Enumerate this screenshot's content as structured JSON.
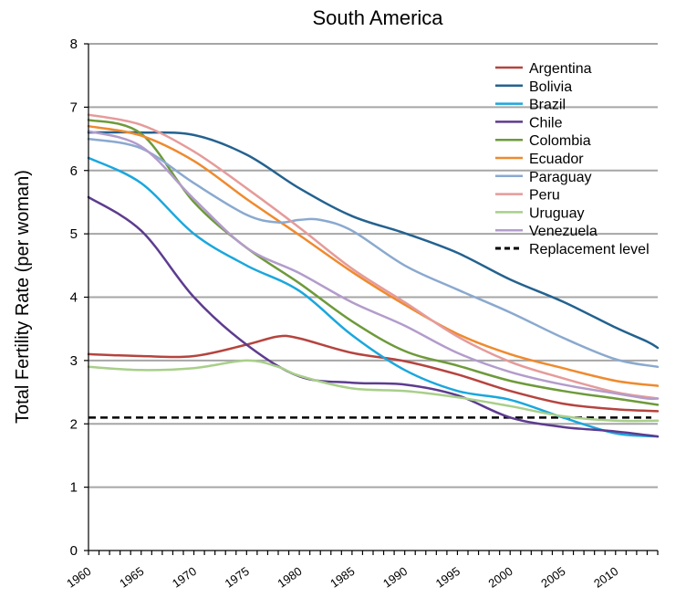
{
  "chart_data": {
    "type": "line",
    "title": "South America",
    "xlabel": "",
    "ylabel": "Total Fertility Rate (per woman)",
    "xlim": [
      1960,
      2014
    ],
    "ylim": [
      0,
      8
    ],
    "x_ticks": [
      1960,
      1965,
      1970,
      1975,
      1980,
      1985,
      1990,
      1995,
      2000,
      2005,
      2010
    ],
    "y_ticks": [
      0,
      1,
      2,
      3,
      4,
      5,
      6,
      7,
      8
    ],
    "grid": "horizontal",
    "legend": "top-right",
    "series": [
      {
        "name": "Argentina",
        "color": "#b5443f",
        "x": [
          1960,
          1965,
          1970,
          1975,
          1978,
          1980,
          1985,
          1990,
          1995,
          2000,
          2005,
          2010,
          2014
        ],
        "y": [
          3.1,
          3.07,
          3.07,
          3.25,
          3.38,
          3.35,
          3.12,
          2.99,
          2.78,
          2.52,
          2.32,
          2.23,
          2.2
        ]
      },
      {
        "name": "Bolivia",
        "color": "#24628f",
        "x": [
          1960,
          1965,
          1970,
          1975,
          1980,
          1985,
          1990,
          1995,
          2000,
          2005,
          2010,
          2013,
          2014
        ],
        "y": [
          6.6,
          6.6,
          6.56,
          6.25,
          5.72,
          5.28,
          5.01,
          4.7,
          4.28,
          3.93,
          3.52,
          3.3,
          3.2
        ]
      },
      {
        "name": "Brazil",
        "color": "#1aa7dd",
        "x": [
          1960,
          1965,
          1970,
          1975,
          1980,
          1985,
          1990,
          1995,
          2000,
          2005,
          2010,
          2014
        ],
        "y": [
          6.2,
          5.8,
          5.0,
          4.5,
          4.1,
          3.4,
          2.85,
          2.52,
          2.38,
          2.1,
          1.85,
          1.8
        ]
      },
      {
        "name": "Chile",
        "color": "#5d3c8f",
        "x": [
          1960,
          1965,
          1970,
          1975,
          1980,
          1985,
          1990,
          1995,
          2000,
          2005,
          2010,
          2014
        ],
        "y": [
          5.58,
          5.05,
          4.0,
          3.25,
          2.75,
          2.65,
          2.62,
          2.45,
          2.1,
          1.95,
          1.88,
          1.8
        ]
      },
      {
        "name": "Colombia",
        "color": "#6e9a3a",
        "x": [
          1960,
          1965,
          1970,
          1975,
          1980,
          1985,
          1990,
          1995,
          2000,
          2005,
          2010,
          2014
        ],
        "y": [
          6.8,
          6.58,
          5.5,
          4.78,
          4.22,
          3.62,
          3.15,
          2.92,
          2.68,
          2.52,
          2.4,
          2.3
        ]
      },
      {
        "name": "Ecuador",
        "color": "#ef8a2e",
        "x": [
          1960,
          1965,
          1970,
          1975,
          1980,
          1985,
          1990,
          1995,
          2000,
          2005,
          2010,
          2014
        ],
        "y": [
          6.7,
          6.55,
          6.15,
          5.55,
          4.98,
          4.4,
          3.88,
          3.42,
          3.1,
          2.88,
          2.68,
          2.6
        ]
      },
      {
        "name": "Paraguay",
        "color": "#8aa9cf",
        "x": [
          1960,
          1965,
          1970,
          1975,
          1978,
          1980,
          1982,
          1985,
          1990,
          1995,
          2000,
          2005,
          2010,
          2014
        ],
        "y": [
          6.5,
          6.35,
          5.8,
          5.3,
          5.18,
          5.22,
          5.22,
          5.05,
          4.5,
          4.12,
          3.76,
          3.36,
          3.02,
          2.9
        ]
      },
      {
        "name": "Peru",
        "color": "#e59b9a",
        "x": [
          1960,
          1965,
          1970,
          1975,
          1980,
          1985,
          1990,
          1995,
          2000,
          2005,
          2010,
          2014
        ],
        "y": [
          6.88,
          6.72,
          6.3,
          5.72,
          5.1,
          4.45,
          3.92,
          3.38,
          2.98,
          2.72,
          2.5,
          2.4
        ]
      },
      {
        "name": "Uruguay",
        "color": "#a8cf8a",
        "x": [
          1960,
          1965,
          1970,
          1975,
          1978,
          1980,
          1985,
          1990,
          1995,
          2000,
          2005,
          2010,
          2014
        ],
        "y": [
          2.9,
          2.85,
          2.88,
          3.0,
          2.9,
          2.76,
          2.56,
          2.52,
          2.42,
          2.28,
          2.12,
          2.05,
          2.05
        ]
      },
      {
        "name": "Venezuela",
        "color": "#b39ccb",
        "x": [
          1960,
          1965,
          1970,
          1975,
          1980,
          1985,
          1990,
          1995,
          2000,
          2005,
          2010,
          2013,
          2014
        ],
        "y": [
          6.62,
          6.38,
          5.55,
          4.78,
          4.38,
          3.92,
          3.55,
          3.12,
          2.82,
          2.62,
          2.48,
          2.4,
          2.4
        ]
      }
    ],
    "reference_line": {
      "name": "Replacement level",
      "y": 2.1,
      "color": "#000000",
      "style": "dashed"
    }
  }
}
